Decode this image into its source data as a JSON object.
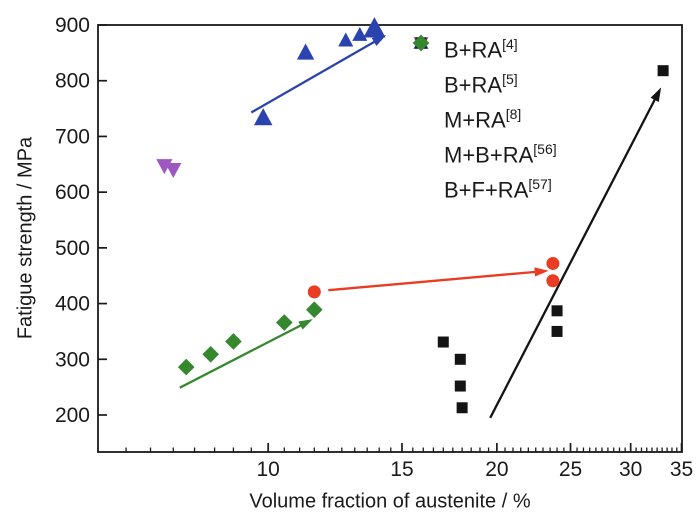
{
  "chart_data": {
    "type": "scatter",
    "title": "",
    "xlabel": "Volume fraction of austenite / %",
    "ylabel": "Fatigue strength / MPa",
    "grid": false,
    "legend_position": "inside-top-right",
    "x_axis": {
      "scale": "log",
      "min": 5.97,
      "max": 35.05,
      "major_ticks": [
        10,
        15,
        20,
        25,
        30,
        35
      ],
      "minor_tick_start": 6.5,
      "minor_tick_step": 0.5
    },
    "y_axis": {
      "scale": "linear",
      "min": 133.6,
      "max": 900,
      "major_ticks": [
        200,
        300,
        400,
        500,
        600,
        700,
        800,
        900
      ]
    },
    "series": [
      {
        "name": "B+RA",
        "ref": "[4]",
        "marker": "triangle-down",
        "color": "#9d58c2",
        "size": 14,
        "points": [
          [
            7.3,
            648
          ],
          [
            7.5,
            641
          ]
        ]
      },
      {
        "name": "B+RA",
        "ref": "[5]",
        "marker": "triangle-up",
        "color": "#2b43ae",
        "size": 15,
        "sizes": [
          16,
          15,
          13,
          13,
          19
        ],
        "points": [
          [
            9.85,
            733
          ],
          [
            11.2,
            850
          ],
          [
            12.65,
            872
          ],
          [
            13.2,
            882
          ],
          [
            13.8,
            893
          ]
        ]
      },
      {
        "name": "M+RA",
        "ref": "[8]",
        "marker": "circle",
        "color": "#ea3b23",
        "size": 13,
        "points": [
          [
            11.5,
            421
          ],
          [
            23.7,
            472
          ],
          [
            23.7,
            441
          ]
        ]
      },
      {
        "name": "M+B+RA",
        "ref": "[56]",
        "marker": "square",
        "color": "#141414",
        "size": 11,
        "points": [
          [
            17.0,
            331
          ],
          [
            17.9,
            300
          ],
          [
            17.9,
            252
          ],
          [
            18.0,
            213
          ],
          [
            24.0,
            387
          ],
          [
            24.0,
            350
          ],
          [
            33.1,
            818
          ]
        ]
      },
      {
        "name": "B+F+RA",
        "ref": "[57]",
        "marker": "diamond",
        "color": "#36882f",
        "size": 13,
        "points": [
          [
            7.8,
            286
          ],
          [
            8.4,
            309
          ],
          [
            9.0,
            332
          ],
          [
            10.5,
            366
          ],
          [
            11.5,
            389
          ]
        ]
      }
    ],
    "trend_arrows": [
      {
        "series": "B+RA[5]",
        "color": "#2b43ae",
        "from": [
          9.5,
          743
        ],
        "to": [
          14.3,
          882
        ]
      },
      {
        "series": "M+RA[8]",
        "color": "#ea3b23",
        "from": [
          12.0,
          424
        ],
        "to": [
          23.4,
          459
        ]
      },
      {
        "series": "B+F+RA[57]",
        "color": "#36882f",
        "from": [
          7.65,
          249
        ],
        "to": [
          11.45,
          372
        ]
      },
      {
        "series": "M+B+RA[56]",
        "color": "#141414",
        "from": [
          19.6,
          195
        ],
        "to": [
          32.9,
          788
        ]
      }
    ]
  }
}
